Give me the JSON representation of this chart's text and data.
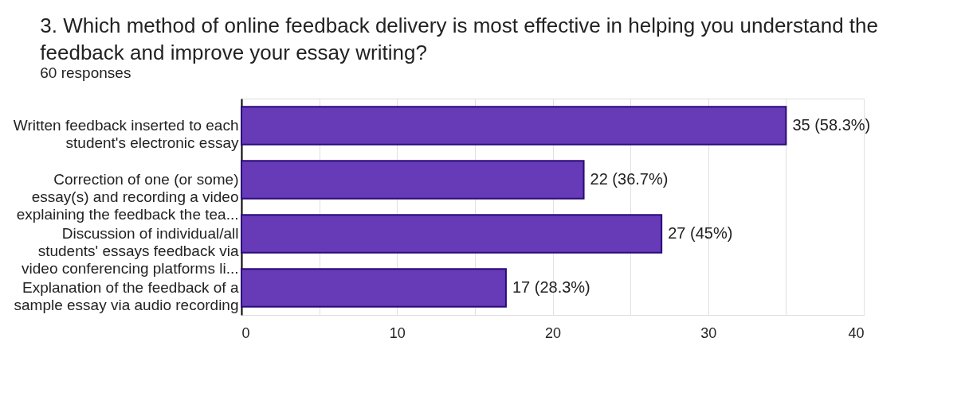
{
  "chart_data": {
    "type": "bar",
    "orientation": "horizontal",
    "title": "3. Which method of online feedback delivery is most effective in helping you understand the\nfeedback and improve your essay writing?",
    "subtitle": "60 responses",
    "categories": [
      "Written feedback inserted to each\nstudent's electronic essay",
      "Correction of one (or some)\nessay(s) and recording a video\nexplaining the feedback the tea...",
      "Discussion of individual/all\nstudents' essays feedback via\nvideo conferencing platforms li...",
      "Explanation of the feedback of a\nsample essay via audio recording"
    ],
    "values": [
      35,
      22,
      27,
      17
    ],
    "value_labels": [
      "35 (58.3%)",
      "22 (36.7%)",
      "27 (45%)",
      "17 (28.3%)"
    ],
    "color": "#673ab7",
    "xlim": [
      0,
      40
    ],
    "xticks": [
      0,
      {
        "value": 5,
        "label": null
      },
      10,
      {
        "value": 15,
        "label": null
      },
      20,
      {
        "value": 25,
        "label": null
      },
      30,
      {
        "value": 35,
        "label": null
      },
      40
    ],
    "grid": true
  }
}
